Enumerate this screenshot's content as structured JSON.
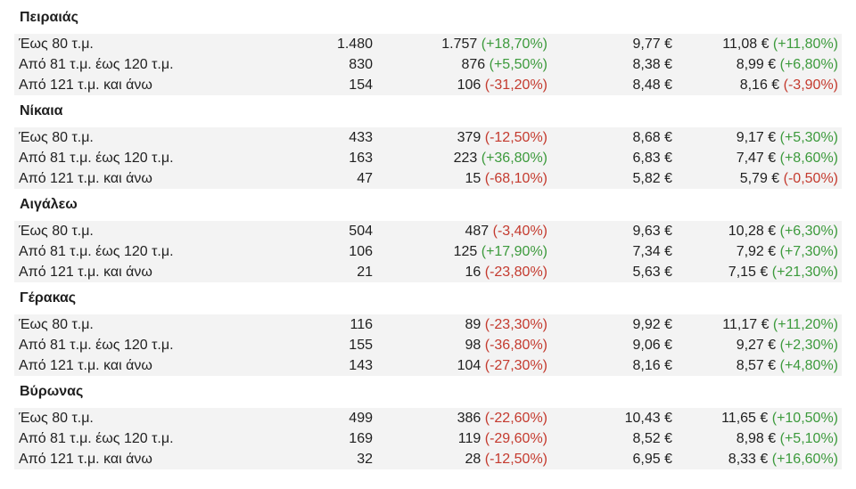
{
  "colors": {
    "positive": "#3c9a3c",
    "negative": "#c43a2e",
    "row_shade": "#f3f3f3"
  },
  "groups": [
    {
      "title": "Πειραιάς",
      "rows": [
        {
          "label": "Έως 80 τ.μ.",
          "v1": "1.480",
          "v2": "1.757",
          "v2_change": "(+18,70%)",
          "v2_sign": "pos",
          "v3": "9,77 €",
          "v4": "11,08 €",
          "v4_change": "(+11,80%)",
          "v4_sign": "pos"
        },
        {
          "label": "Από 81 τ.μ. έως 120 τ.μ.",
          "v1": "830",
          "v2": "876",
          "v2_change": "(+5,50%)",
          "v2_sign": "pos",
          "v3": "8,38 €",
          "v4": "8,99 €",
          "v4_change": "(+6,80%)",
          "v4_sign": "pos"
        },
        {
          "label": "Από 121 τ.μ. και άνω",
          "v1": "154",
          "v2": "106",
          "v2_change": "(-31,20%)",
          "v2_sign": "neg",
          "v3": "8,48 €",
          "v4": "8,16 €",
          "v4_change": "(-3,90%)",
          "v4_sign": "neg"
        }
      ]
    },
    {
      "title": "Νίκαια",
      "rows": [
        {
          "label": "Έως 80 τ.μ.",
          "v1": "433",
          "v2": "379",
          "v2_change": "(-12,50%)",
          "v2_sign": "neg",
          "v3": "8,68 €",
          "v4": "9,17 €",
          "v4_change": "(+5,30%)",
          "v4_sign": "pos"
        },
        {
          "label": "Από 81 τ.μ. έως 120 τ.μ.",
          "v1": "163",
          "v2": "223",
          "v2_change": "(+36,80%)",
          "v2_sign": "pos",
          "v3": "6,83 €",
          "v4": "7,47 €",
          "v4_change": "(+8,60%)",
          "v4_sign": "pos"
        },
        {
          "label": "Από 121 τ.μ. και άνω",
          "v1": "47",
          "v2": "15",
          "v2_change": "(-68,10%)",
          "v2_sign": "neg",
          "v3": "5,82 €",
          "v4": "5,79 €",
          "v4_change": "(-0,50%)",
          "v4_sign": "neg"
        }
      ]
    },
    {
      "title": "Αιγάλεω",
      "rows": [
        {
          "label": "Έως 80 τ.μ.",
          "v1": "504",
          "v2": "487",
          "v2_change": "(-3,40%)",
          "v2_sign": "neg",
          "v3": "9,63 €",
          "v4": "10,28 €",
          "v4_change": "(+6,30%)",
          "v4_sign": "pos"
        },
        {
          "label": "Από 81 τ.μ. έως 120 τ.μ.",
          "v1": "106",
          "v2": "125",
          "v2_change": "(+17,90%)",
          "v2_sign": "pos",
          "v3": "7,34 €",
          "v4": "7,92 €",
          "v4_change": "(+7,30%)",
          "v4_sign": "pos"
        },
        {
          "label": "Από 121 τ.μ. και άνω",
          "v1": "21",
          "v2": "16",
          "v2_change": "(-23,80%)",
          "v2_sign": "neg",
          "v3": "5,63 €",
          "v4": "7,15 €",
          "v4_change": "(+21,30%)",
          "v4_sign": "pos"
        }
      ]
    },
    {
      "title": "Γέρακας",
      "rows": [
        {
          "label": "Έως 80 τ.μ.",
          "v1": "116",
          "v2": "89",
          "v2_change": "(-23,30%)",
          "v2_sign": "neg",
          "v3": "9,92 €",
          "v4": "11,17 €",
          "v4_change": "(+11,20%)",
          "v4_sign": "pos"
        },
        {
          "label": "Από 81 τ.μ. έως 120 τ.μ.",
          "v1": "155",
          "v2": "98",
          "v2_change": "(-36,80%)",
          "v2_sign": "neg",
          "v3": "9,06 €",
          "v4": "9,27 €",
          "v4_change": "(+2,30%)",
          "v4_sign": "pos"
        },
        {
          "label": "Από 121 τ.μ. και άνω",
          "v1": "143",
          "v2": "104",
          "v2_change": "(-27,30%)",
          "v2_sign": "neg",
          "v3": "8,16 €",
          "v4": "8,57 €",
          "v4_change": "(+4,80%)",
          "v4_sign": "pos"
        }
      ]
    },
    {
      "title": "Βύρωνας",
      "rows": [
        {
          "label": "Έως 80 τ.μ.",
          "v1": "499",
          "v2": "386",
          "v2_change": "(-22,60%)",
          "v2_sign": "neg",
          "v3": "10,43 €",
          "v4": "11,65 €",
          "v4_change": "(+10,50%)",
          "v4_sign": "pos"
        },
        {
          "label": "Από 81 τ.μ. έως 120 τ.μ.",
          "v1": "169",
          "v2": "119",
          "v2_change": "(-29,60%)",
          "v2_sign": "neg",
          "v3": "8,52 €",
          "v4": "8,98 €",
          "v4_change": "(+5,10%)",
          "v4_sign": "pos"
        },
        {
          "label": "Από 121 τ.μ. και άνω",
          "v1": "32",
          "v2": "28",
          "v2_change": "(-12,50%)",
          "v2_sign": "neg",
          "v3": "6,95 €",
          "v4": "8,33 €",
          "v4_change": "(+16,60%)",
          "v4_sign": "pos"
        }
      ]
    }
  ]
}
